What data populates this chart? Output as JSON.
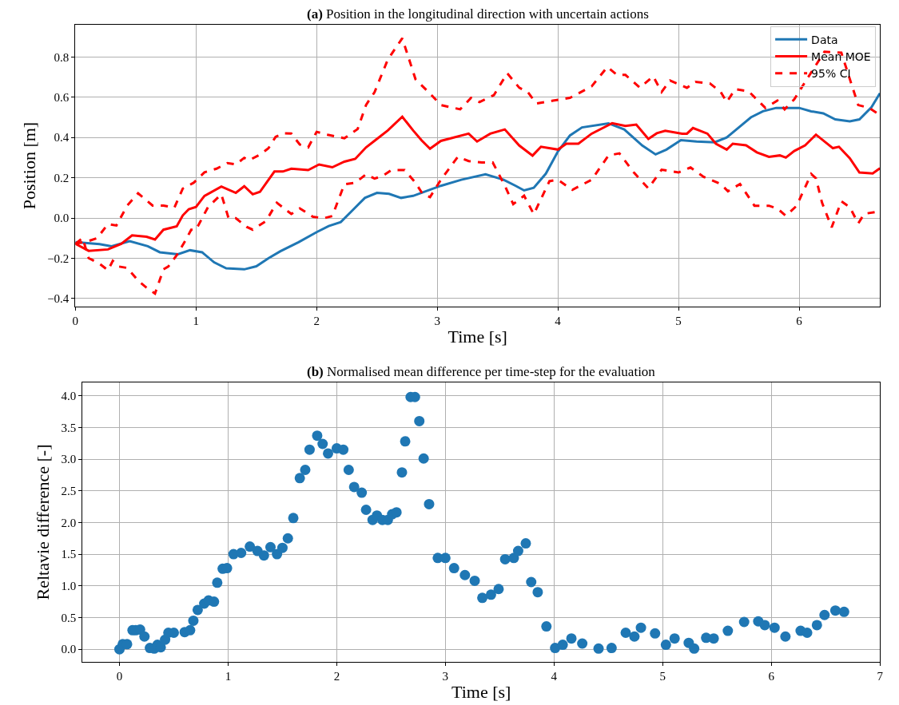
{
  "chart_data": [
    {
      "type": "line",
      "title": "(a) Position in the longitudinal direction with uncertain actions",
      "xlabel": "Time [s]",
      "ylabel": "Position [m]",
      "xlim": [
        0,
        6.67
      ],
      "ylim": [
        -0.44,
        0.96
      ],
      "xticks": [
        0,
        1,
        2,
        3,
        4,
        5,
        6
      ],
      "yticks": [
        {
          "value": -0.4,
          "label": "−0.4"
        },
        {
          "value": -0.2,
          "label": "−0.2"
        },
        {
          "value": 0,
          "label": "0.0"
        },
        0.2,
        0.4,
        0.6,
        0.8
      ],
      "grid": true,
      "legend": "top right",
      "marker": "none",
      "series": [
        {
          "name": "Data",
          "color": "#1f77b4",
          "line_style": "solid",
          "x": [
            0,
            0.1,
            0.2,
            0.3,
            0.45,
            0.6,
            0.7,
            0.85,
            0.95,
            1.05,
            1.15,
            1.25,
            1.4,
            1.5,
            1.6,
            1.7,
            1.85,
            2.0,
            2.1,
            2.2,
            2.3,
            2.4,
            2.5,
            2.6,
            2.7,
            2.8,
            3.03,
            3.2,
            3.4,
            3.55,
            3.65,
            3.72,
            3.8,
            3.9,
            4.0,
            4.1,
            4.2,
            4.42,
            4.55,
            4.7,
            4.81,
            4.9,
            5.02,
            5.15,
            5.3,
            5.4,
            5.5,
            5.6,
            5.7,
            5.81,
            6.0,
            6.1,
            6.2,
            6.3,
            6.42,
            6.5,
            6.6,
            6.67
          ],
          "values": [
            -0.12,
            -0.125,
            -0.13,
            -0.14,
            -0.115,
            -0.14,
            -0.17,
            -0.18,
            -0.16,
            -0.17,
            -0.22,
            -0.25,
            -0.255,
            -0.24,
            -0.2,
            -0.165,
            -0.12,
            -0.07,
            -0.04,
            -0.02,
            0.04,
            0.1,
            0.125,
            0.12,
            0.1,
            0.11,
            0.16,
            0.19,
            0.217,
            0.19,
            0.16,
            0.137,
            0.15,
            0.22,
            0.33,
            0.41,
            0.45,
            0.47,
            0.44,
            0.36,
            0.316,
            0.34,
            0.387,
            0.38,
            0.376,
            0.4,
            0.45,
            0.5,
            0.53,
            0.547,
            0.547,
            0.53,
            0.52,
            0.49,
            0.48,
            0.49,
            0.55,
            0.62
          ]
        },
        {
          "name": "Mean MOE",
          "color": "#ff0000",
          "line_style": "solid",
          "x": [
            0,
            0.11,
            0.27,
            0.38,
            0.47,
            0.59,
            0.66,
            0.73,
            0.84,
            0.89,
            0.94,
            1.0,
            1.07,
            1.21,
            1.33,
            1.4,
            1.47,
            1.53,
            1.65,
            1.72,
            1.79,
            1.93,
            2.02,
            2.13,
            2.23,
            2.32,
            2.41,
            2.5,
            2.59,
            2.71,
            2.8,
            2.87,
            2.94,
            3.03,
            3.26,
            3.33,
            3.44,
            3.56,
            3.68,
            3.79,
            3.86,
            4.0,
            4.07,
            4.17,
            4.28,
            4.45,
            4.56,
            4.65,
            4.75,
            4.82,
            4.89,
            5.03,
            5.07,
            5.12,
            5.24,
            5.31,
            5.4,
            5.45,
            5.56,
            5.65,
            5.75,
            5.84,
            5.89,
            5.96,
            6.05,
            6.14,
            6.28,
            6.33,
            6.42,
            6.5,
            6.61,
            6.67
          ],
          "values": [
            -0.128,
            -0.163,
            -0.156,
            -0.128,
            -0.086,
            -0.093,
            -0.107,
            -0.058,
            -0.041,
            0.013,
            0.044,
            0.055,
            0.11,
            0.156,
            0.125,
            0.158,
            0.118,
            0.13,
            0.231,
            0.231,
            0.245,
            0.238,
            0.266,
            0.252,
            0.28,
            0.294,
            0.351,
            0.393,
            0.435,
            0.503,
            0.435,
            0.386,
            0.344,
            0.383,
            0.419,
            0.38,
            0.419,
            0.44,
            0.36,
            0.31,
            0.354,
            0.34,
            0.369,
            0.369,
            0.419,
            0.471,
            0.457,
            0.464,
            0.393,
            0.421,
            0.433,
            0.419,
            0.419,
            0.447,
            0.419,
            0.369,
            0.34,
            0.369,
            0.361,
            0.326,
            0.304,
            0.311,
            0.3,
            0.333,
            0.361,
            0.414,
            0.347,
            0.354,
            0.297,
            0.226,
            0.221,
            0.247
          ]
        },
        {
          "name": "95% CI",
          "color": "#ff0000",
          "line_style": "dashed",
          "x": [
            0,
            0.11,
            0.18,
            0.27,
            0.34,
            0.43,
            0.52,
            0.64,
            0.73,
            0.82,
            0.89,
            0.98,
            1.07,
            1.17,
            1.26,
            1.33,
            1.4,
            1.44,
            1.53,
            1.6,
            1.66,
            1.72,
            1.79,
            1.86,
            1.93,
            2.0,
            2.09,
            2.23,
            2.34,
            2.41,
            2.48,
            2.59,
            2.71,
            2.82,
            2.94,
            3.03,
            3.19,
            3.28,
            3.35,
            3.47,
            3.58,
            3.68,
            3.75,
            3.82,
            3.96,
            4.1,
            4.28,
            4.41,
            4.49,
            4.56,
            4.68,
            4.79,
            4.86,
            4.93,
            5.07,
            5.14,
            5.26,
            5.35,
            5.4,
            5.47,
            5.58,
            5.72,
            5.82,
            5.88,
            5.96,
            6.05,
            6.21,
            6.35,
            6.49,
            6.58,
            6.67
          ],
          "values": [
            -0.128,
            -0.114,
            -0.1,
            -0.03,
            -0.037,
            0.062,
            0.123,
            0.062,
            0.062,
            0.051,
            0.146,
            0.175,
            0.227,
            0.245,
            0.273,
            0.266,
            0.299,
            0.287,
            0.315,
            0.346,
            0.403,
            0.421,
            0.42,
            0.365,
            0.351,
            0.428,
            0.414,
            0.396,
            0.442,
            0.562,
            0.625,
            0.787,
            0.893,
            0.689,
            0.618,
            0.561,
            0.54,
            0.597,
            0.576,
            0.611,
            0.719,
            0.647,
            0.626,
            0.569,
            0.583,
            0.597,
            0.654,
            0.75,
            0.711,
            0.711,
            0.647,
            0.704,
            0.626,
            0.683,
            0.647,
            0.676,
            0.669,
            0.626,
            0.576,
            0.64,
            0.63,
            0.547,
            0.583,
            0.54,
            0.59,
            0.676,
            0.826,
            0.821,
            0.561,
            0.547,
            0.511
          ]
        },
        {
          "color": "#ff0000",
          "line_style": "dashed",
          "x": [
            0,
            0.06,
            0.11,
            0.2,
            0.27,
            0.31,
            0.36,
            0.43,
            0.52,
            0.59,
            0.66,
            0.73,
            0.77,
            0.84,
            0.91,
            0.96,
            1.0,
            1.1,
            1.21,
            1.27,
            1.33,
            1.42,
            1.47,
            1.58,
            1.67,
            1.79,
            1.86,
            1.97,
            2.06,
            2.13,
            2.23,
            2.32,
            2.41,
            2.48,
            2.55,
            2.62,
            2.73,
            2.82,
            2.88,
            2.94,
            3.03,
            3.17,
            3.26,
            3.37,
            3.46,
            3.56,
            3.63,
            3.72,
            3.8,
            3.93,
            4.0,
            4.12,
            4.28,
            4.42,
            4.51,
            4.63,
            4.75,
            4.86,
            5.0,
            5.1,
            5.21,
            5.35,
            5.41,
            5.51,
            5.63,
            5.75,
            5.82,
            5.89,
            5.98,
            6.1,
            6.14,
            6.19,
            6.27,
            6.35,
            6.42,
            6.49,
            6.54,
            6.67
          ],
          "values": [
            -0.128,
            -0.1,
            -0.199,
            -0.227,
            -0.259,
            -0.213,
            -0.241,
            -0.248,
            -0.311,
            -0.346,
            -0.375,
            -0.255,
            -0.241,
            -0.185,
            -0.114,
            -0.058,
            -0.058,
            0.055,
            0.118,
            -0.001,
            -0.001,
            -0.044,
            -0.058,
            -0.015,
            0.076,
            0.02,
            0.048,
            0.006,
            -0.001,
            0.01,
            0.168,
            0.175,
            0.217,
            0.196,
            0.21,
            0.238,
            0.238,
            0.175,
            0.118,
            0.104,
            0.19,
            0.304,
            0.283,
            0.276,
            0.276,
            0.161,
            0.069,
            0.111,
            0.019,
            0.183,
            0.19,
            0.14,
            0.19,
            0.311,
            0.321,
            0.226,
            0.147,
            0.24,
            0.226,
            0.251,
            0.204,
            0.169,
            0.133,
            0.169,
            0.061,
            0.061,
            0.047,
            0.011,
            0.061,
            0.219,
            0.197,
            0.076,
            -0.046,
            0.083,
            0.054,
            -0.027,
            0.021,
            0.033
          ]
        }
      ]
    },
    {
      "type": "scatter",
      "title": "(b) Normalised mean difference per time-step for the evaluation",
      "xlabel": "Time [s]",
      "ylabel": "Reltavie difference [-]",
      "xlim": [
        -0.34,
        7.0
      ],
      "ylim": [
        -0.2,
        4.21
      ],
      "xticks": [
        0,
        1,
        2,
        3,
        4,
        5,
        6,
        7
      ],
      "yticks": [
        {
          "value": 0,
          "label": "0.0"
        },
        0.5,
        {
          "value": 1,
          "label": "1.0"
        },
        1.5,
        {
          "value": 2,
          "label": "2.0"
        },
        2.5,
        {
          "value": 3,
          "label": "3.0"
        },
        3.5,
        {
          "value": 4,
          "label": "4.0"
        }
      ],
      "grid": true,
      "marker": "circle",
      "series": [
        {
          "color": "#1f77b4",
          "x": [
            0,
            0.03,
            0.07,
            0.12,
            0.15,
            0.19,
            0.23,
            0.28,
            0.32,
            0.35,
            0.38,
            0.42,
            0.45,
            0.5,
            0.6,
            0.65,
            0.68,
            0.72,
            0.78,
            0.82,
            0.87,
            0.9,
            0.95,
            0.99,
            1.05,
            1.12,
            1.2,
            1.27,
            1.33,
            1.39,
            1.45,
            1.5,
            1.55,
            1.6,
            1.66,
            1.71,
            1.75,
            1.82,
            1.87,
            1.92,
            2.0,
            2.06,
            2.11,
            2.16,
            2.23,
            2.27,
            2.33,
            2.37,
            2.42,
            2.47,
            2.51,
            2.55,
            2.6,
            2.63,
            2.68,
            2.72,
            2.76,
            2.8,
            2.85,
            2.93,
            3.0,
            3.08,
            3.18,
            3.27,
            3.34,
            3.42,
            3.49,
            3.55,
            3.63,
            3.67,
            3.74,
            3.79,
            3.85,
            3.93,
            4.01,
            4.08,
            4.16,
            4.26,
            4.41,
            4.53,
            4.66,
            4.74,
            4.8,
            4.93,
            5.03,
            5.11,
            5.24,
            5.29,
            5.4,
            5.47,
            5.6,
            5.75,
            5.88,
            5.94,
            6.03,
            6.13,
            6.27,
            6.33,
            6.42,
            6.49,
            6.59,
            6.67
          ],
          "values": [
            0,
            0.08,
            0.08,
            0.3,
            0.3,
            0.31,
            0.2,
            0.02,
            0.01,
            0.07,
            0.03,
            0.15,
            0.26,
            0.26,
            0.27,
            0.3,
            0.45,
            0.62,
            0.72,
            0.77,
            0.75,
            1.05,
            1.27,
            1.28,
            1.5,
            1.52,
            1.62,
            1.55,
            1.48,
            1.61,
            1.5,
            1.6,
            1.75,
            2.07,
            2.7,
            2.83,
            3.15,
            3.37,
            3.24,
            3.09,
            3.17,
            3.15,
            2.83,
            2.56,
            2.47,
            2.2,
            2.04,
            2.11,
            2.04,
            2.04,
            2.13,
            2.16,
            2.79,
            3.28,
            3.98,
            3.98,
            3.6,
            3.01,
            2.29,
            1.44,
            1.44,
            1.28,
            1.17,
            1.08,
            0.81,
            0.86,
            0.95,
            1.42,
            1.44,
            1.55,
            1.67,
            1.06,
            0.9,
            0.36,
            0.02,
            0.07,
            0.17,
            0.09,
            0.01,
            0.02,
            0.26,
            0.2,
            0.34,
            0.25,
            0.07,
            0.17,
            0.1,
            0.01,
            0.18,
            0.17,
            0.29,
            0.43,
            0.44,
            0.38,
            0.34,
            0.2,
            0.29,
            0.26,
            0.38,
            0.54,
            0.61,
            0.59
          ]
        }
      ]
    }
  ]
}
